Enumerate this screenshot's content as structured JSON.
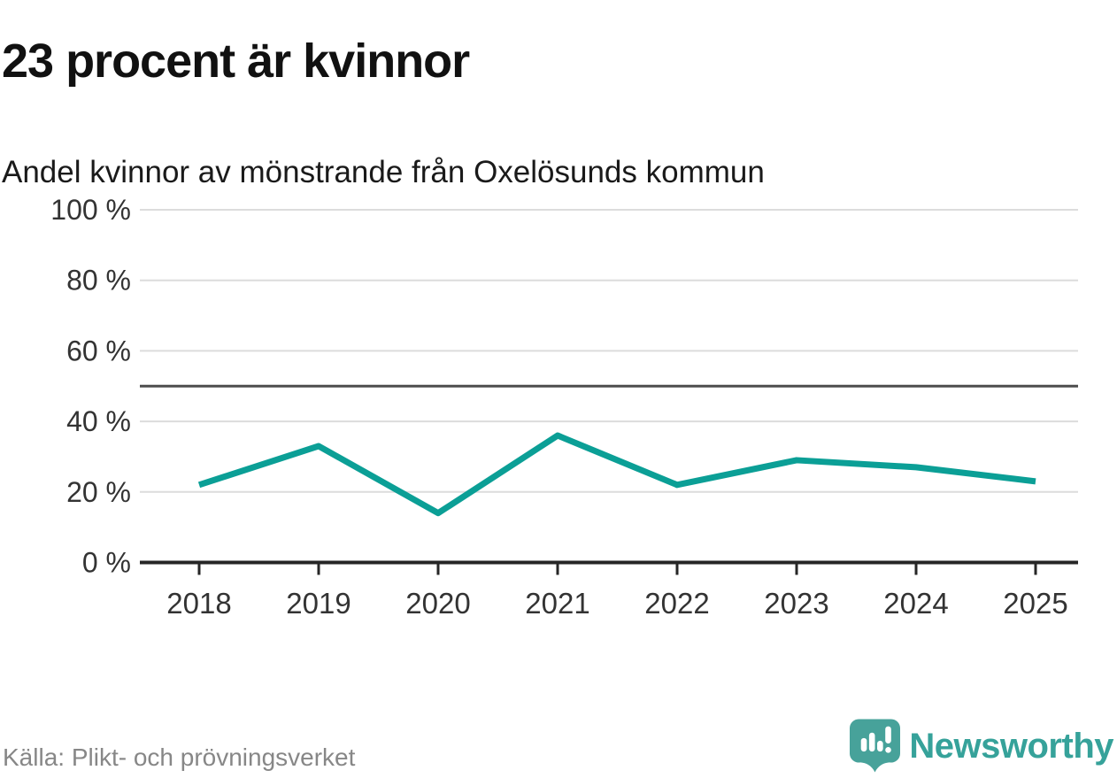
{
  "header": {
    "title": "23 procent är kvinnor",
    "subtitle": "Andel kvinnor av mönstrande från Oxelösunds kommun"
  },
  "chart_data": {
    "type": "line",
    "categories": [
      "2018",
      "2019",
      "2020",
      "2021",
      "2022",
      "2023",
      "2024",
      "2025"
    ],
    "values": [
      22,
      33,
      14,
      36,
      22,
      29,
      27,
      23
    ],
    "series_name": "Andel kvinnor av mönstrande",
    "title": "23 procent är kvinnor",
    "xlabel": "",
    "ylabel": "",
    "ylim": [
      0,
      100
    ],
    "yticks": [
      0,
      20,
      40,
      60,
      80,
      100
    ],
    "ytick_suffix": " %",
    "reference_line": {
      "value": 50
    },
    "grid": true,
    "legend": "none",
    "colors": {
      "line": "#0b9f96",
      "grid": "#dcdcdc",
      "reference": "#4d4d4d",
      "axis": "#262626",
      "tick_label": "#333333"
    }
  },
  "footer": {
    "source": "Källa: Plikt- och prövningsverket",
    "brand": "Newsworthy",
    "brand_color": "#36a29a",
    "logo_color": "#47a29a"
  },
  "icons": {
    "logo": "newsworthy-speech-bubble-chart-icon"
  }
}
